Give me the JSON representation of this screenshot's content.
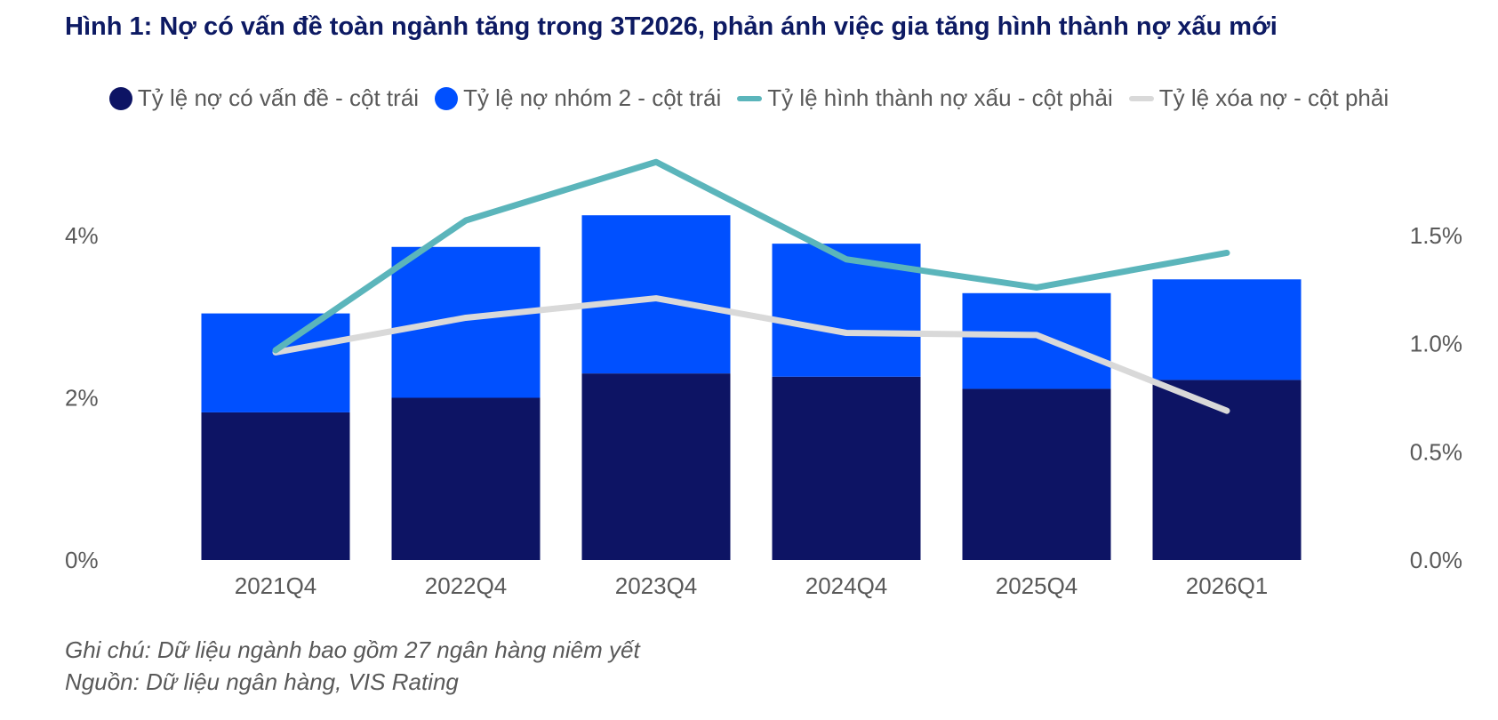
{
  "title": "Hình 1: Nợ có vấn đề toàn ngành tăng trong 3T2026, phản ánh việc gia tăng hình thành nợ xấu mới",
  "legend": [
    {
      "label": "Tỷ lệ nợ có vấn đề - cột trái",
      "color": "#0d1464",
      "shape": "circle"
    },
    {
      "label": "Tỷ lệ nợ nhóm 2 - cột trái",
      "color": "#0050ff",
      "shape": "circle"
    },
    {
      "label": "Tỷ lệ hình thành nợ xấu - cột phải",
      "color": "#5bb5bb",
      "shape": "line"
    },
    {
      "label": "Tỷ lệ xóa nợ - cột phải",
      "color": "#d9d9d9",
      "shape": "line"
    }
  ],
  "chart_data": {
    "type": "bar",
    "categories": [
      "2021Q4",
      "2022Q4",
      "2023Q4",
      "2024Q4",
      "2025Q4",
      "2026Q1"
    ],
    "series": [
      {
        "name": "Tỷ lệ nợ có vấn đề - cột trái",
        "type": "bar",
        "axis": "left",
        "stack": "main",
        "color": "#0d1464",
        "values": [
          1.82,
          2.0,
          2.3,
          2.26,
          2.11,
          2.22
        ]
      },
      {
        "name": "Tỷ lệ nợ nhóm 2 - cột trái",
        "type": "bar",
        "axis": "left",
        "stack": "main",
        "color": "#0050ff",
        "values": [
          1.22,
          1.86,
          1.95,
          1.64,
          1.18,
          1.24
        ]
      },
      {
        "name": "Tỷ lệ hình thành nợ xấu - cột phải",
        "type": "line",
        "axis": "right",
        "color": "#5bb5bb",
        "values": [
          0.97,
          1.57,
          1.84,
          1.39,
          1.26,
          1.42
        ]
      },
      {
        "name": "Tỷ lệ xóa nợ - cột phải",
        "type": "line",
        "axis": "right",
        "color": "#d9d9d9",
        "values": [
          0.96,
          1.12,
          1.21,
          1.05,
          1.04,
          0.69
        ]
      }
    ],
    "y_left": {
      "ylim": [
        0,
        4
      ],
      "ticks": [
        0,
        2,
        4
      ],
      "tick_labels": [
        "0%",
        "2%",
        "4%"
      ]
    },
    "y_right": {
      "ylim": [
        0,
        1.5
      ],
      "ticks": [
        0,
        0.5,
        1.0,
        1.5
      ],
      "tick_labels": [
        "0.0%",
        "0.5%",
        "1.0%",
        "1.5%"
      ]
    },
    "grid": false,
    "legend_position": "top"
  },
  "notes": {
    "note": "Ghi chú: Dữ liệu ngành bao gồm 27 ngân hàng niêm yết",
    "source": "Nguồn: Dữ liệu ngân hàng, VIS Rating"
  }
}
